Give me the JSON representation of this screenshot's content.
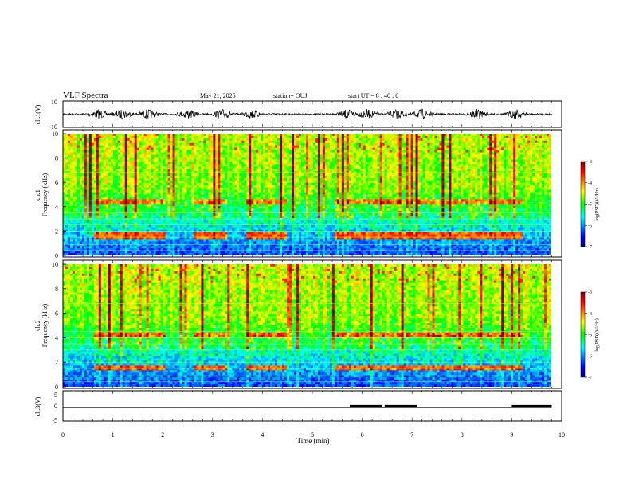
{
  "header": {
    "title": "VLF Spectra",
    "date": "May 21, 2025",
    "station": "station= OUJ",
    "start": "start  UT  =   8  : 40 : 0"
  },
  "chart_data": [
    {
      "type": "line",
      "name": "ch1-waveform",
      "ylabel": "ch.1(V)",
      "ylim": [
        -10,
        10
      ],
      "yticks": [
        "10",
        "-10"
      ],
      "xlim": [
        0,
        10
      ],
      "bursts_min": [
        0.7,
        1.2,
        1.7,
        2.5,
        3.2,
        3.8,
        5.7,
        6.1,
        6.7,
        7.2,
        8.3,
        9.1
      ]
    },
    {
      "type": "heatmap",
      "name": "ch1-spectrogram",
      "ylabel": "ch.1\nFrequency  (kHz)",
      "ylim": [
        0,
        10
      ],
      "yticks": [
        "0",
        "2",
        "4",
        "6",
        "8",
        "10"
      ],
      "xlim": [
        0,
        10
      ],
      "colorbar": {
        "label": "log(PSD)(V²/Hz)",
        "range": [
          -7,
          -3
        ],
        "ticks": [
          "-3",
          "-4",
          "-5",
          "-6",
          "-7"
        ]
      },
      "lines_khz": [
        0.4,
        0.9,
        1.5,
        2.0,
        2.5,
        3.0,
        3.5,
        4.5,
        6.8
      ],
      "band_segments_min": [
        [
          0.6,
          2.05
        ],
        [
          2.65,
          3.3
        ],
        [
          3.7,
          4.5
        ],
        [
          5.45,
          9.2
        ]
      ],
      "band_khz": [
        4.4,
        1.6
      ]
    },
    {
      "type": "heatmap",
      "name": "ch2-spectrogram",
      "ylabel": "ch.2\nFrequency  (kHz)",
      "ylim": [
        0,
        10
      ],
      "yticks": [
        "0",
        "2",
        "4",
        "6",
        "8",
        "10"
      ],
      "xlim": [
        0,
        10
      ],
      "colorbar": {
        "label": "log(PSD)(V²/Hz)",
        "range": [
          -7,
          -3
        ],
        "ticks": [
          "-3",
          "-4",
          "-5",
          "-6",
          "-7"
        ]
      },
      "lines_khz": [
        0.4,
        0.9,
        1.5,
        2.0,
        2.5,
        3.0,
        3.5,
        4.0,
        4.5,
        6.8
      ],
      "band_segments_min": [
        [
          0.6,
          2.05
        ],
        [
          2.65,
          3.3
        ],
        [
          3.7,
          4.5
        ],
        [
          5.45,
          9.2
        ]
      ],
      "band_khz": [
        4.2,
        1.5
      ]
    },
    {
      "type": "line",
      "name": "ch3-status",
      "ylabel": "ch.3(V)",
      "ylim": [
        -5,
        5
      ],
      "yticks": [
        "5",
        "0",
        "-5"
      ],
      "xlim": [
        0,
        10
      ],
      "baseline": -0.5,
      "segments": [
        {
          "x": [
            5.75,
            6.4
          ],
          "y": 0
        },
        {
          "x": [
            6.45,
            7.1
          ],
          "y": 0
        },
        {
          "x": [
            9.0,
            9.8
          ],
          "y": 0
        }
      ]
    }
  ],
  "xaxis": {
    "label": "Time  (min)",
    "ticks": [
      "0",
      "1",
      "2",
      "3",
      "4",
      "5",
      "6",
      "7",
      "8",
      "9",
      "10"
    ]
  }
}
